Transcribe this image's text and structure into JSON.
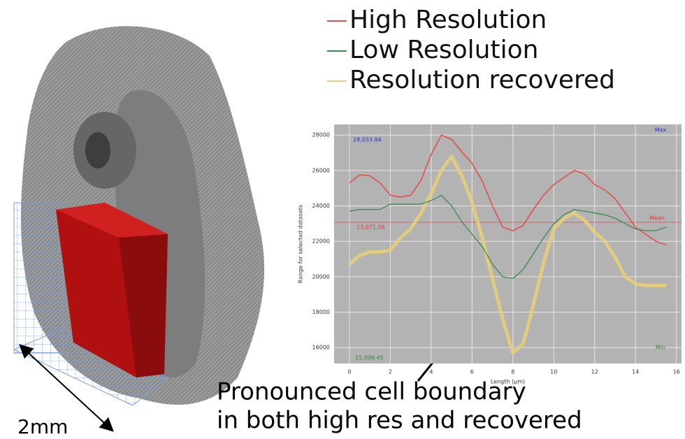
{
  "chart_data": {
    "type": "line",
    "legend": "top",
    "y_label": "Range for selected datasets",
    "x_label": "Length (µm)",
    "x": [
      0,
      0.5,
      1,
      1.5,
      2,
      2.5,
      3,
      3.5,
      4,
      4.5,
      5,
      5.5,
      6,
      6.5,
      7,
      7.5,
      8,
      8.5,
      9,
      9.5,
      10,
      10.5,
      11,
      11.5,
      12,
      12.5,
      13,
      13.5,
      14,
      14.5,
      15,
      15.5
    ],
    "series": [
      {
        "name": "High Resolution",
        "color": "#e0504a",
        "values": [
          25300,
          25750,
          25700,
          25300,
          24600,
          24500,
          24600,
          25450,
          26900,
          28000,
          27750,
          27050,
          26400,
          25400,
          24000,
          22800,
          22600,
          22900,
          23800,
          24600,
          25200,
          25600,
          26000,
          25800,
          25200,
          24900,
          24400,
          23600,
          22800,
          22400,
          22000,
          21800
        ]
      },
      {
        "name": "Low Resolution",
        "color": "#3a8a50",
        "values": [
          23700,
          23800,
          23800,
          23800,
          24100,
          24100,
          24100,
          24100,
          24300,
          24600,
          24000,
          23100,
          22400,
          21700,
          20700,
          20000,
          19900,
          20400,
          21300,
          22200,
          23000,
          23500,
          23800,
          23700,
          23600,
          23500,
          23300,
          23000,
          22700,
          22600,
          22600,
          22800
        ]
      },
      {
        "name": "Resolution recovered",
        "color": "#e8cf78",
        "values": [
          20700,
          21200,
          21400,
          21400,
          21500,
          22200,
          22700,
          23600,
          24700,
          26000,
          26800,
          25700,
          24200,
          22200,
          19900,
          17600,
          15700,
          16200,
          18400,
          20800,
          22700,
          23300,
          23600,
          23200,
          22500,
          22000,
          21100,
          20000,
          19600,
          19500,
          19500,
          19500
        ]
      }
    ],
    "xlim": [
      -0.75,
      16.25
    ],
    "ylim": [
      15100,
      28600
    ],
    "xticks": [
      0,
      2,
      4,
      6,
      8,
      10,
      12,
      14,
      16
    ],
    "yticks": [
      16000,
      18000,
      20000,
      22000,
      24000,
      26000,
      28000
    ],
    "grid": true,
    "stats": [
      {
        "name": "Max",
        "label": "28,033.84",
        "color": "#2a2ad0"
      },
      {
        "name": "Mean",
        "value": 23071.56,
        "label": "23,071.56",
        "color": "#d83a3a"
      },
      {
        "name": "Min",
        "label": "15,099.45",
        "color": "#2a8a30"
      }
    ],
    "annotation": [
      "Pronounced cell boundary",
      "in both high res and recovered"
    ],
    "scale_label": "2mm"
  }
}
